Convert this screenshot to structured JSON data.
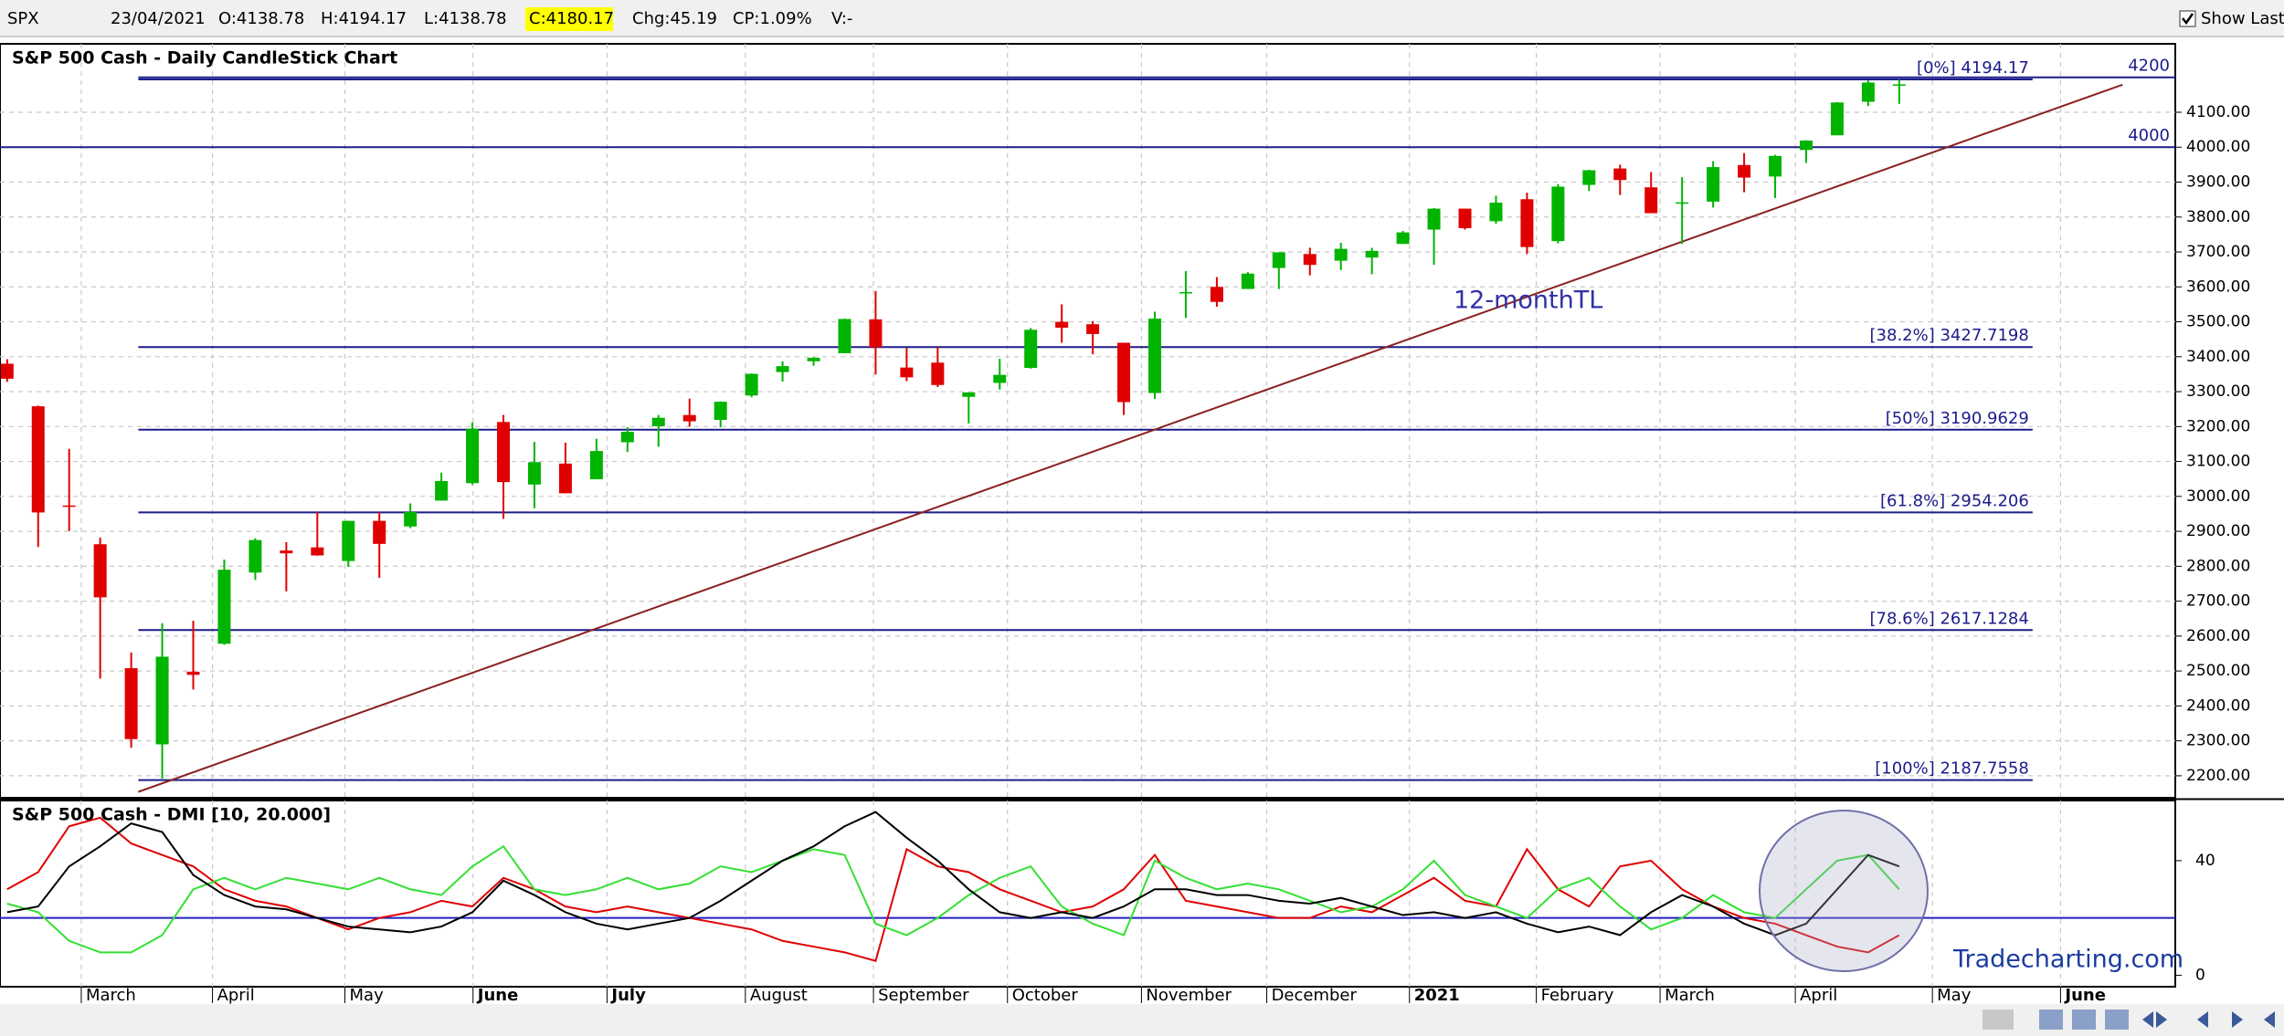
{
  "header": {
    "symbol": "SPX",
    "date": "23/04/2021",
    "open": "O:4138.78",
    "high": "H:4194.17",
    "low": "L:4138.78",
    "close": "C:4180.17",
    "change": "Chg:45.19",
    "change_pct": "CP:1.09%",
    "volume": "V:-",
    "show_last": "Show Last"
  },
  "watermark": "Tradecharting.com",
  "chart_data": [
    {
      "type": "candlestick",
      "title": "S&P 500 Cash - Daily CandleStick Chart",
      "open": [
        3380,
        3258,
        2974,
        2863,
        2508,
        2290,
        2498,
        2578,
        2782,
        2845,
        2854,
        2815,
        2930,
        2914,
        2988,
        3038,
        3213,
        3034,
        3094,
        3049,
        3155,
        3201,
        3233,
        3219,
        3289,
        3356,
        3387,
        3410,
        3507,
        3369,
        3383,
        3285,
        3325,
        3368,
        3500,
        3493,
        3440,
        3296,
        3584,
        3600,
        3594,
        3654,
        3694,
        3675,
        3684,
        3723,
        3764,
        3824,
        3788,
        3851,
        3731,
        3892,
        3939,
        3885,
        3842,
        3844,
        3949,
        3916,
        3992,
        4034,
        4130,
        4179
      ],
      "high": [
        3393,
        3260,
        3136,
        2882,
        2553,
        2637,
        2644,
        2819,
        2880,
        2869,
        2955,
        2930,
        2955,
        2980,
        3068,
        3212,
        3233,
        3156,
        3154,
        3165,
        3198,
        3233,
        3280,
        3272,
        3352,
        3387,
        3399,
        3509,
        3588,
        3425,
        3428,
        3298,
        3394,
        3482,
        3550,
        3502,
        3440,
        3529,
        3645,
        3628,
        3642,
        3699,
        3712,
        3726,
        3712,
        3760,
        3826,
        3823,
        3861,
        3870,
        3894,
        3935,
        3950,
        3929,
        3914,
        3960,
        3983,
        3978,
        4020,
        4129,
        4191,
        4194
      ],
      "low": [
        3328,
        2855,
        2901,
        2478,
        2280,
        2192,
        2447,
        2575,
        2761,
        2728,
        2830,
        2798,
        2767,
        2909,
        2988,
        3034,
        2936,
        2966,
        3009,
        3049,
        3127,
        3142,
        3200,
        3198,
        3284,
        3329,
        3374,
        3410,
        3349,
        3330,
        3313,
        3209,
        3306,
        3366,
        3440,
        3407,
        3233,
        3279,
        3511,
        3543,
        3594,
        3594,
        3633,
        3648,
        3636,
        3723,
        3663,
        3764,
        3781,
        3694,
        3725,
        3874,
        3863,
        3811,
        3723,
        3827,
        3871,
        3854,
        3955,
        4034,
        4118,
        4124
      ],
      "close": [
        3337,
        2954,
        2972,
        2711,
        2305,
        2541,
        2489,
        2790,
        2875,
        2837,
        2831,
        2930,
        2864,
        2955,
        3044,
        3194,
        3041,
        3098,
        3009,
        3130,
        3185,
        3225,
        3215,
        3271,
        3351,
        3373,
        3397,
        3508,
        3427,
        3341,
        3319,
        3298,
        3348,
        3477,
        3483,
        3465,
        3270,
        3509,
        3585,
        3557,
        3638,
        3699,
        3663,
        3709,
        3703,
        3756,
        3824,
        3768,
        3841,
        3714,
        3887,
        3934,
        3906,
        3811,
        3842,
        3943,
        3913,
        3975,
        4019,
        4128,
        4185,
        4180
      ],
      "color_up": "#00b400",
      "color_down": "#e00000",
      "xlim": [
        -0.23,
        69.9
      ],
      "ylim": [
        2137,
        4296
      ],
      "yticks": [
        {
          "value": 2200,
          "label": "2200.00"
        },
        {
          "value": 2300,
          "label": "2300.00"
        },
        {
          "value": 2400,
          "label": "2400.00"
        },
        {
          "value": 2500,
          "label": "2500.00"
        },
        {
          "value": 2600,
          "label": "2600.00"
        },
        {
          "value": 2700,
          "label": "2700.00"
        },
        {
          "value": 2800,
          "label": "2800.00"
        },
        {
          "value": 2900,
          "label": "2900.00"
        },
        {
          "value": 3000,
          "label": "3000.00"
        },
        {
          "value": 3100,
          "label": "3100.00"
        },
        {
          "value": 3200,
          "label": "3200.00"
        },
        {
          "value": 3300,
          "label": "3300.00"
        },
        {
          "value": 3400,
          "label": "3400.00"
        },
        {
          "value": 3500,
          "label": "3500.00"
        },
        {
          "value": 3600,
          "label": "3600.00"
        },
        {
          "value": 3700,
          "label": "3700.00"
        },
        {
          "value": 3800,
          "label": "3800.00"
        },
        {
          "value": 3900,
          "label": "3900.00"
        },
        {
          "value": 4000,
          "label": "4000.00"
        },
        {
          "value": 4100,
          "label": "4100.00"
        }
      ],
      "grid": true,
      "lines": [
        {
          "value": 4200,
          "label": "4200"
        },
        {
          "value": 4000,
          "label": "4000"
        }
      ],
      "levels": [
        {
          "value": 4194.17,
          "label": "[0%] 4194.17"
        },
        {
          "value": 3427.7198,
          "label": "[38.2%] 3427.7198"
        },
        {
          "value": 3190.9629,
          "label": "[50%] 3190.9629"
        },
        {
          "value": 2954.206,
          "label": "[61.8%] 2954.206"
        },
        {
          "value": 2617.1284,
          "label": "[78.6%] 2617.1284"
        },
        {
          "value": 2187.7558,
          "label": "[100%] 2187.7558"
        }
      ],
      "level_color": "#1c1c8a",
      "trendline": {
        "label": "12-monthTL",
        "x": [
          4.23,
          68.2
        ],
        "values": [
          2154,
          4179
        ],
        "color": "#8b2020"
      }
    },
    {
      "type": "line",
      "title": "S&P 500 Cash - DMI [10, 20.000]",
      "series": [
        {
          "color": "#e00000",
          "values": [
            30,
            36,
            52,
            55,
            46,
            42,
            38,
            30,
            26,
            24,
            20,
            16,
            20,
            22,
            26,
            24,
            34,
            30,
            24,
            22,
            24,
            22,
            20,
            18,
            16,
            12,
            10,
            8,
            5,
            44,
            38,
            36,
            30,
            26,
            22,
            24,
            30,
            42,
            26,
            24,
            22,
            20,
            20,
            24,
            22,
            28,
            34,
            26,
            24,
            44,
            30,
            24,
            38,
            40,
            30,
            24,
            20,
            18,
            14,
            10,
            8,
            14
          ]
        },
        {
          "color": "#33e033",
          "values": [
            25,
            22,
            12,
            8,
            8,
            14,
            30,
            34,
            30,
            34,
            32,
            30,
            34,
            30,
            28,
            38,
            45,
            30,
            28,
            30,
            34,
            30,
            32,
            38,
            36,
            40,
            44,
            42,
            18,
            14,
            20,
            28,
            34,
            38,
            24,
            18,
            14,
            40,
            34,
            30,
            32,
            30,
            26,
            22,
            24,
            30,
            40,
            28,
            24,
            20,
            30,
            34,
            24,
            16,
            20,
            28,
            22,
            20,
            30,
            40,
            42,
            30
          ]
        },
        {
          "color": "#000000",
          "values": [
            22,
            24,
            38,
            45,
            53,
            50,
            35,
            28,
            24,
            23,
            20,
            17,
            16,
            15,
            17,
            22,
            33,
            28,
            22,
            18,
            16,
            18,
            20,
            26,
            33,
            40,
            45,
            52,
            57,
            48,
            40,
            30,
            22,
            20,
            22,
            20,
            24,
            30,
            30,
            28,
            28,
            26,
            25,
            27,
            24,
            21,
            22,
            20,
            22,
            18,
            15,
            17,
            14,
            22,
            28,
            24,
            18,
            14,
            18,
            30,
            42,
            38
          ]
        }
      ],
      "threshold": 20,
      "threshold_color": "#2020c0",
      "xlim": [
        -0.23,
        69.9
      ],
      "ylim": [
        -4,
        61
      ],
      "yticks": [
        0,
        40
      ],
      "grid": true,
      "xticks": [
        {
          "value": 2.39,
          "label": "March"
        },
        {
          "value": 6.62,
          "label": "April"
        },
        {
          "value": 10.89,
          "label": "May"
        },
        {
          "value": 15.02,
          "label": "June"
        },
        {
          "value": 19.34,
          "label": "July"
        },
        {
          "value": 23.8,
          "label": "August"
        },
        {
          "value": 27.93,
          "label": "September"
        },
        {
          "value": 32.25,
          "label": "October"
        },
        {
          "value": 36.57,
          "label": "November"
        },
        {
          "value": 40.61,
          "label": "December"
        },
        {
          "value": 45.21,
          "label": "2021"
        },
        {
          "value": 49.3,
          "label": "February"
        },
        {
          "value": 53.29,
          "label": "March"
        },
        {
          "value": 57.65,
          "label": "April"
        },
        {
          "value": 62.07,
          "label": "May"
        },
        {
          "value": 66.2,
          "label": "June"
        }
      ]
    }
  ]
}
